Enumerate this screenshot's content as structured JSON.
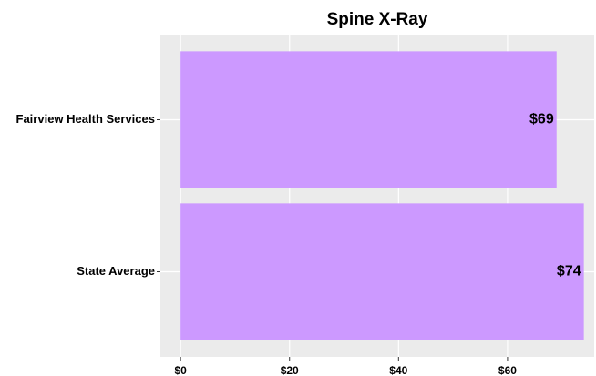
{
  "chart_data": {
    "type": "barh",
    "title": "Spine X-Ray",
    "categories": [
      "Fairview Health Services",
      "State Average"
    ],
    "values": [
      69,
      74
    ],
    "value_labels": [
      "$69",
      "$74"
    ],
    "color": "#cc99ff",
    "xlim": [
      -3.7,
      75.9
    ],
    "xticks": [
      {
        "value": 0,
        "label": "$0"
      },
      {
        "value": 20,
        "label": "$20"
      },
      {
        "value": 40,
        "label": "$40"
      },
      {
        "value": 60,
        "label": "$60"
      }
    ],
    "grid": true
  }
}
